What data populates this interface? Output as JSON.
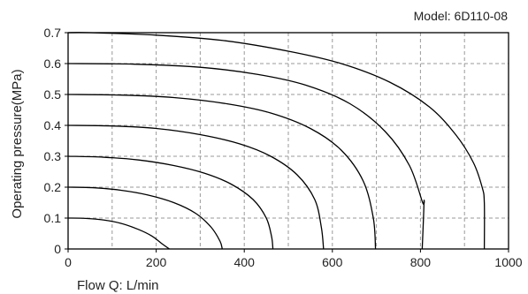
{
  "chart_data": {
    "type": "line",
    "title": "Model: 6D110-08",
    "xlabel": "Flow  Q: L/min",
    "ylabel": "Operating pressure(MPa)",
    "xlim": [
      0,
      1000
    ],
    "ylim": [
      0,
      0.7
    ],
    "xticks": [
      "0",
      "200",
      "400",
      "600",
      "800",
      "1000"
    ],
    "yticks": [
      "0",
      "0.1",
      "0.2",
      "0.3",
      "0.4",
      "0.5",
      "0.6",
      "0.7"
    ],
    "grid": true,
    "series": [
      {
        "x": [
          0,
          40,
          80,
          120,
          160,
          190,
          215,
          230
        ],
        "y": [
          0.1,
          0.099,
          0.094,
          0.083,
          0.063,
          0.042,
          0.015,
          0
        ]
      },
      {
        "x": [
          0,
          60,
          120,
          180,
          240,
          290,
          325,
          345,
          350
        ],
        "y": [
          0.2,
          0.198,
          0.19,
          0.175,
          0.15,
          0.115,
          0.07,
          0.025,
          0
        ]
      },
      {
        "x": [
          0,
          80,
          160,
          240,
          310,
          370,
          420,
          450,
          462,
          465
        ],
        "y": [
          0.3,
          0.297,
          0.288,
          0.27,
          0.245,
          0.21,
          0.16,
          0.1,
          0.04,
          0
        ]
      },
      {
        "x": [
          0,
          100,
          200,
          300,
          390,
          460,
          520,
          560,
          575,
          580
        ],
        "y": [
          0.4,
          0.398,
          0.39,
          0.37,
          0.34,
          0.3,
          0.24,
          0.16,
          0.07,
          0
        ]
      },
      {
        "x": [
          0,
          120,
          240,
          360,
          460,
          550,
          620,
          670,
          693,
          698
        ],
        "y": [
          0.5,
          0.498,
          0.49,
          0.47,
          0.44,
          0.39,
          0.32,
          0.22,
          0.1,
          0
        ]
      },
      {
        "x": [
          0,
          150,
          300,
          430,
          540,
          640,
          720,
          775,
          805,
          808,
          804
        ],
        "y": [
          0.6,
          0.598,
          0.588,
          0.565,
          0.53,
          0.47,
          0.38,
          0.27,
          0.15,
          0.15,
          0
        ]
      },
      {
        "x": [
          0,
          50,
          200,
          350,
          500,
          620,
          730,
          820,
          880,
          920,
          940,
          945,
          945
        ],
        "y": [
          0.7,
          0.7,
          0.692,
          0.675,
          0.64,
          0.6,
          0.54,
          0.46,
          0.37,
          0.28,
          0.2,
          0.15,
          0
        ]
      }
    ]
  }
}
